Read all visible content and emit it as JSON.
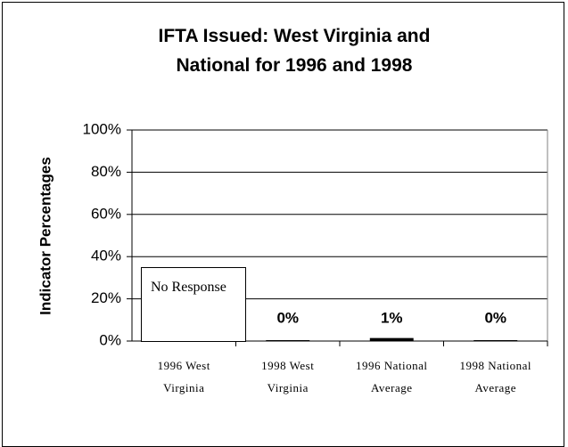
{
  "chart_data": {
    "type": "bar",
    "title": "IFTA Issued: West Virginia and National for 1996 and 1998",
    "y_label": "Indicator Percentages",
    "categories": [
      "1996 West Virginia",
      "1998 West Virginia",
      "1996 National Average",
      "1998 National Average"
    ],
    "values": [
      null,
      0,
      1,
      0
    ],
    "value_labels": [
      null,
      "0%",
      "1%",
      "0%"
    ],
    "annotation": "No Response",
    "color": "#000000",
    "ylim": [
      0,
      100
    ],
    "yticks": [
      {
        "value": 0,
        "label": "0%"
      },
      {
        "value": 20,
        "label": "20%"
      },
      {
        "value": 40,
        "label": "40%"
      },
      {
        "value": 60,
        "label": "60%"
      },
      {
        "value": 80,
        "label": "80%"
      },
      {
        "value": 100,
        "label": "100%"
      }
    ],
    "grid": true
  }
}
